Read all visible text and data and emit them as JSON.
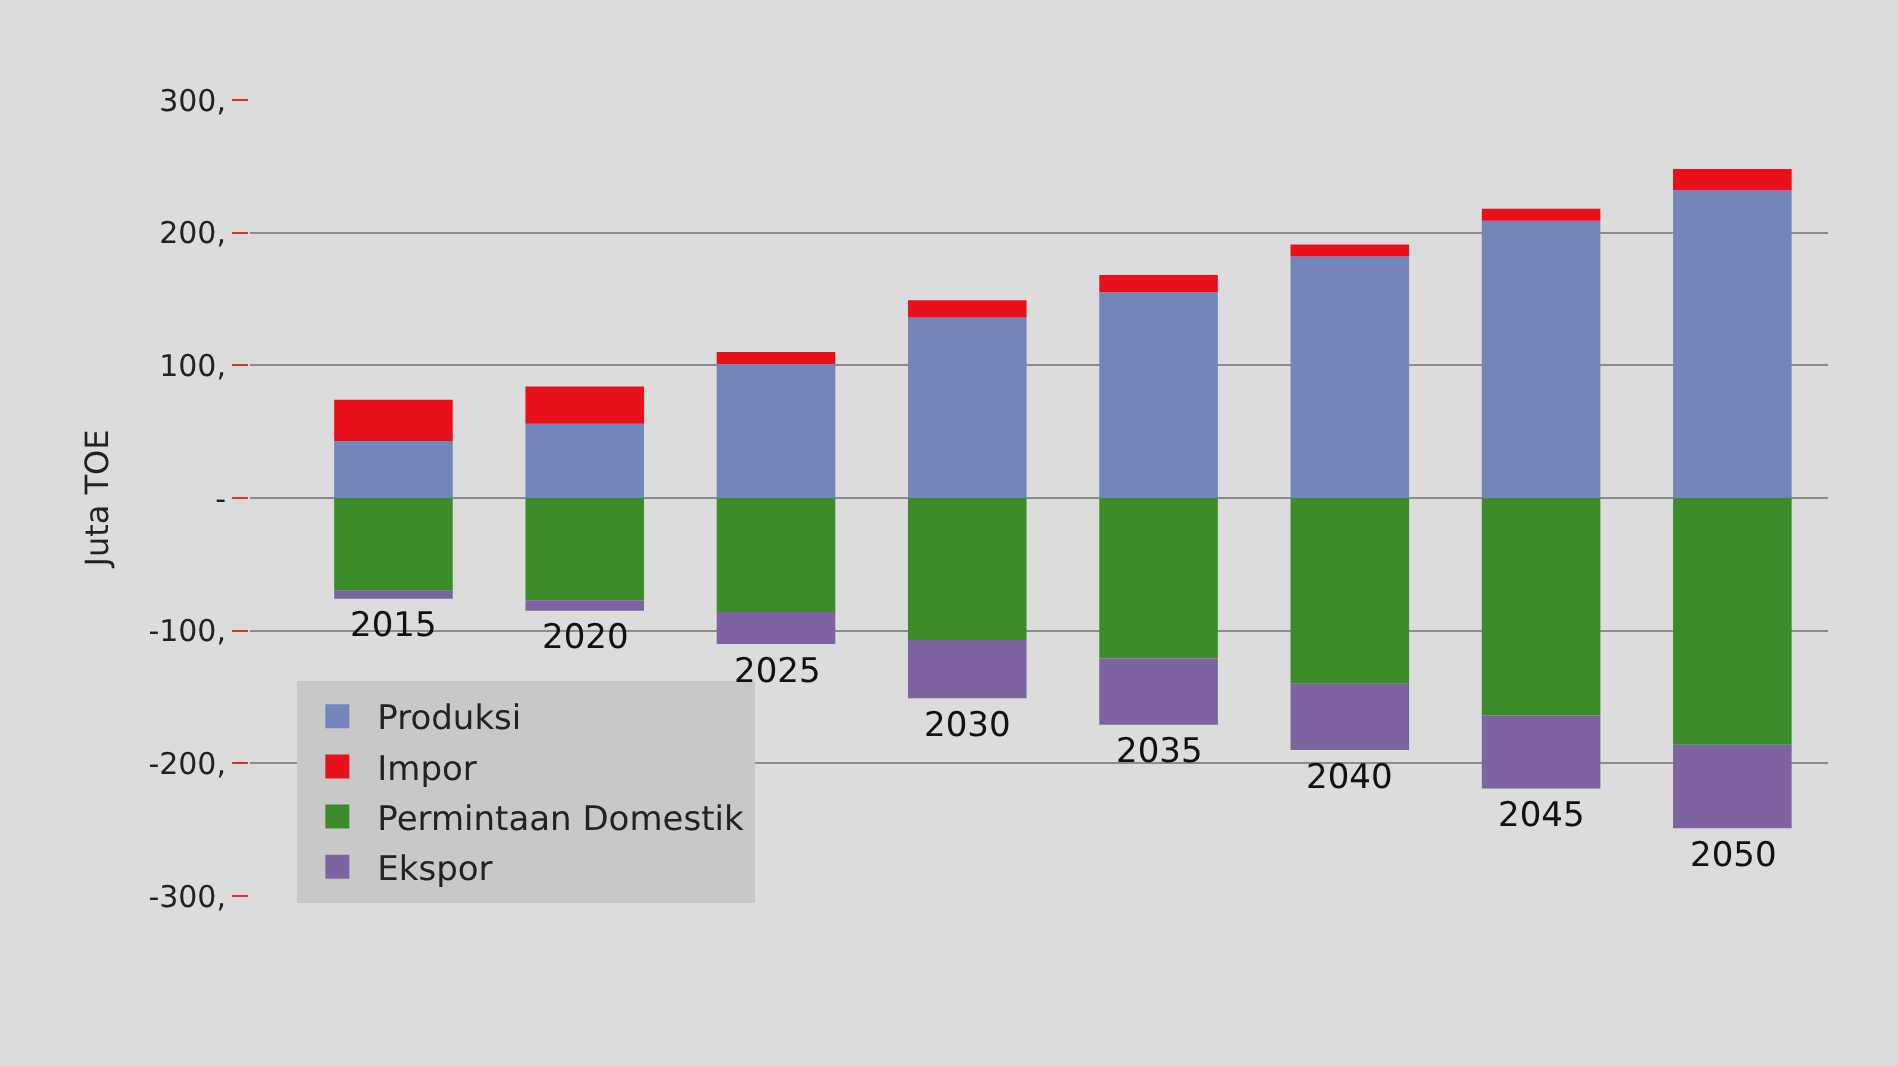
{
  "chart_data": {
    "type": "bar",
    "stacked": true,
    "ylabel": "Juta TOE",
    "categories": [
      "2015",
      "2020",
      "2025",
      "2030",
      "2035",
      "2040",
      "2045",
      "2050"
    ],
    "series": [
      {
        "name": "Produksi",
        "color": "#7385bb",
        "values": [
          43,
          56,
          101,
          136,
          155,
          182,
          209,
          232
        ]
      },
      {
        "name": "Impor",
        "color": "#e8101a",
        "values": [
          31,
          28,
          9,
          13,
          13,
          9,
          9,
          16
        ]
      },
      {
        "name": "Permintaan Domestik",
        "color": "#3d8c2c",
        "values": [
          -70,
          -77,
          -86,
          -107,
          -121,
          -140,
          -164,
          -186
        ]
      },
      {
        "name": "Ekspor",
        "color": "#7d64a0",
        "values": [
          -6,
          -8,
          -24,
          -44,
          -50,
          -50,
          -55,
          -63
        ]
      }
    ],
    "ylim": [
      -300,
      300
    ],
    "yticks": [
      {
        "value": 300,
        "label": "300,"
      },
      {
        "value": 200,
        "label": "200,"
      },
      {
        "value": 100,
        "label": "100,"
      },
      {
        "value": 0,
        "label": "-"
      },
      {
        "value": -100,
        "label": "-100,"
      },
      {
        "value": -200,
        "label": "-200,"
      },
      {
        "value": -300,
        "label": "-300,"
      }
    ],
    "grid": "y",
    "legend": "bottom left"
  }
}
